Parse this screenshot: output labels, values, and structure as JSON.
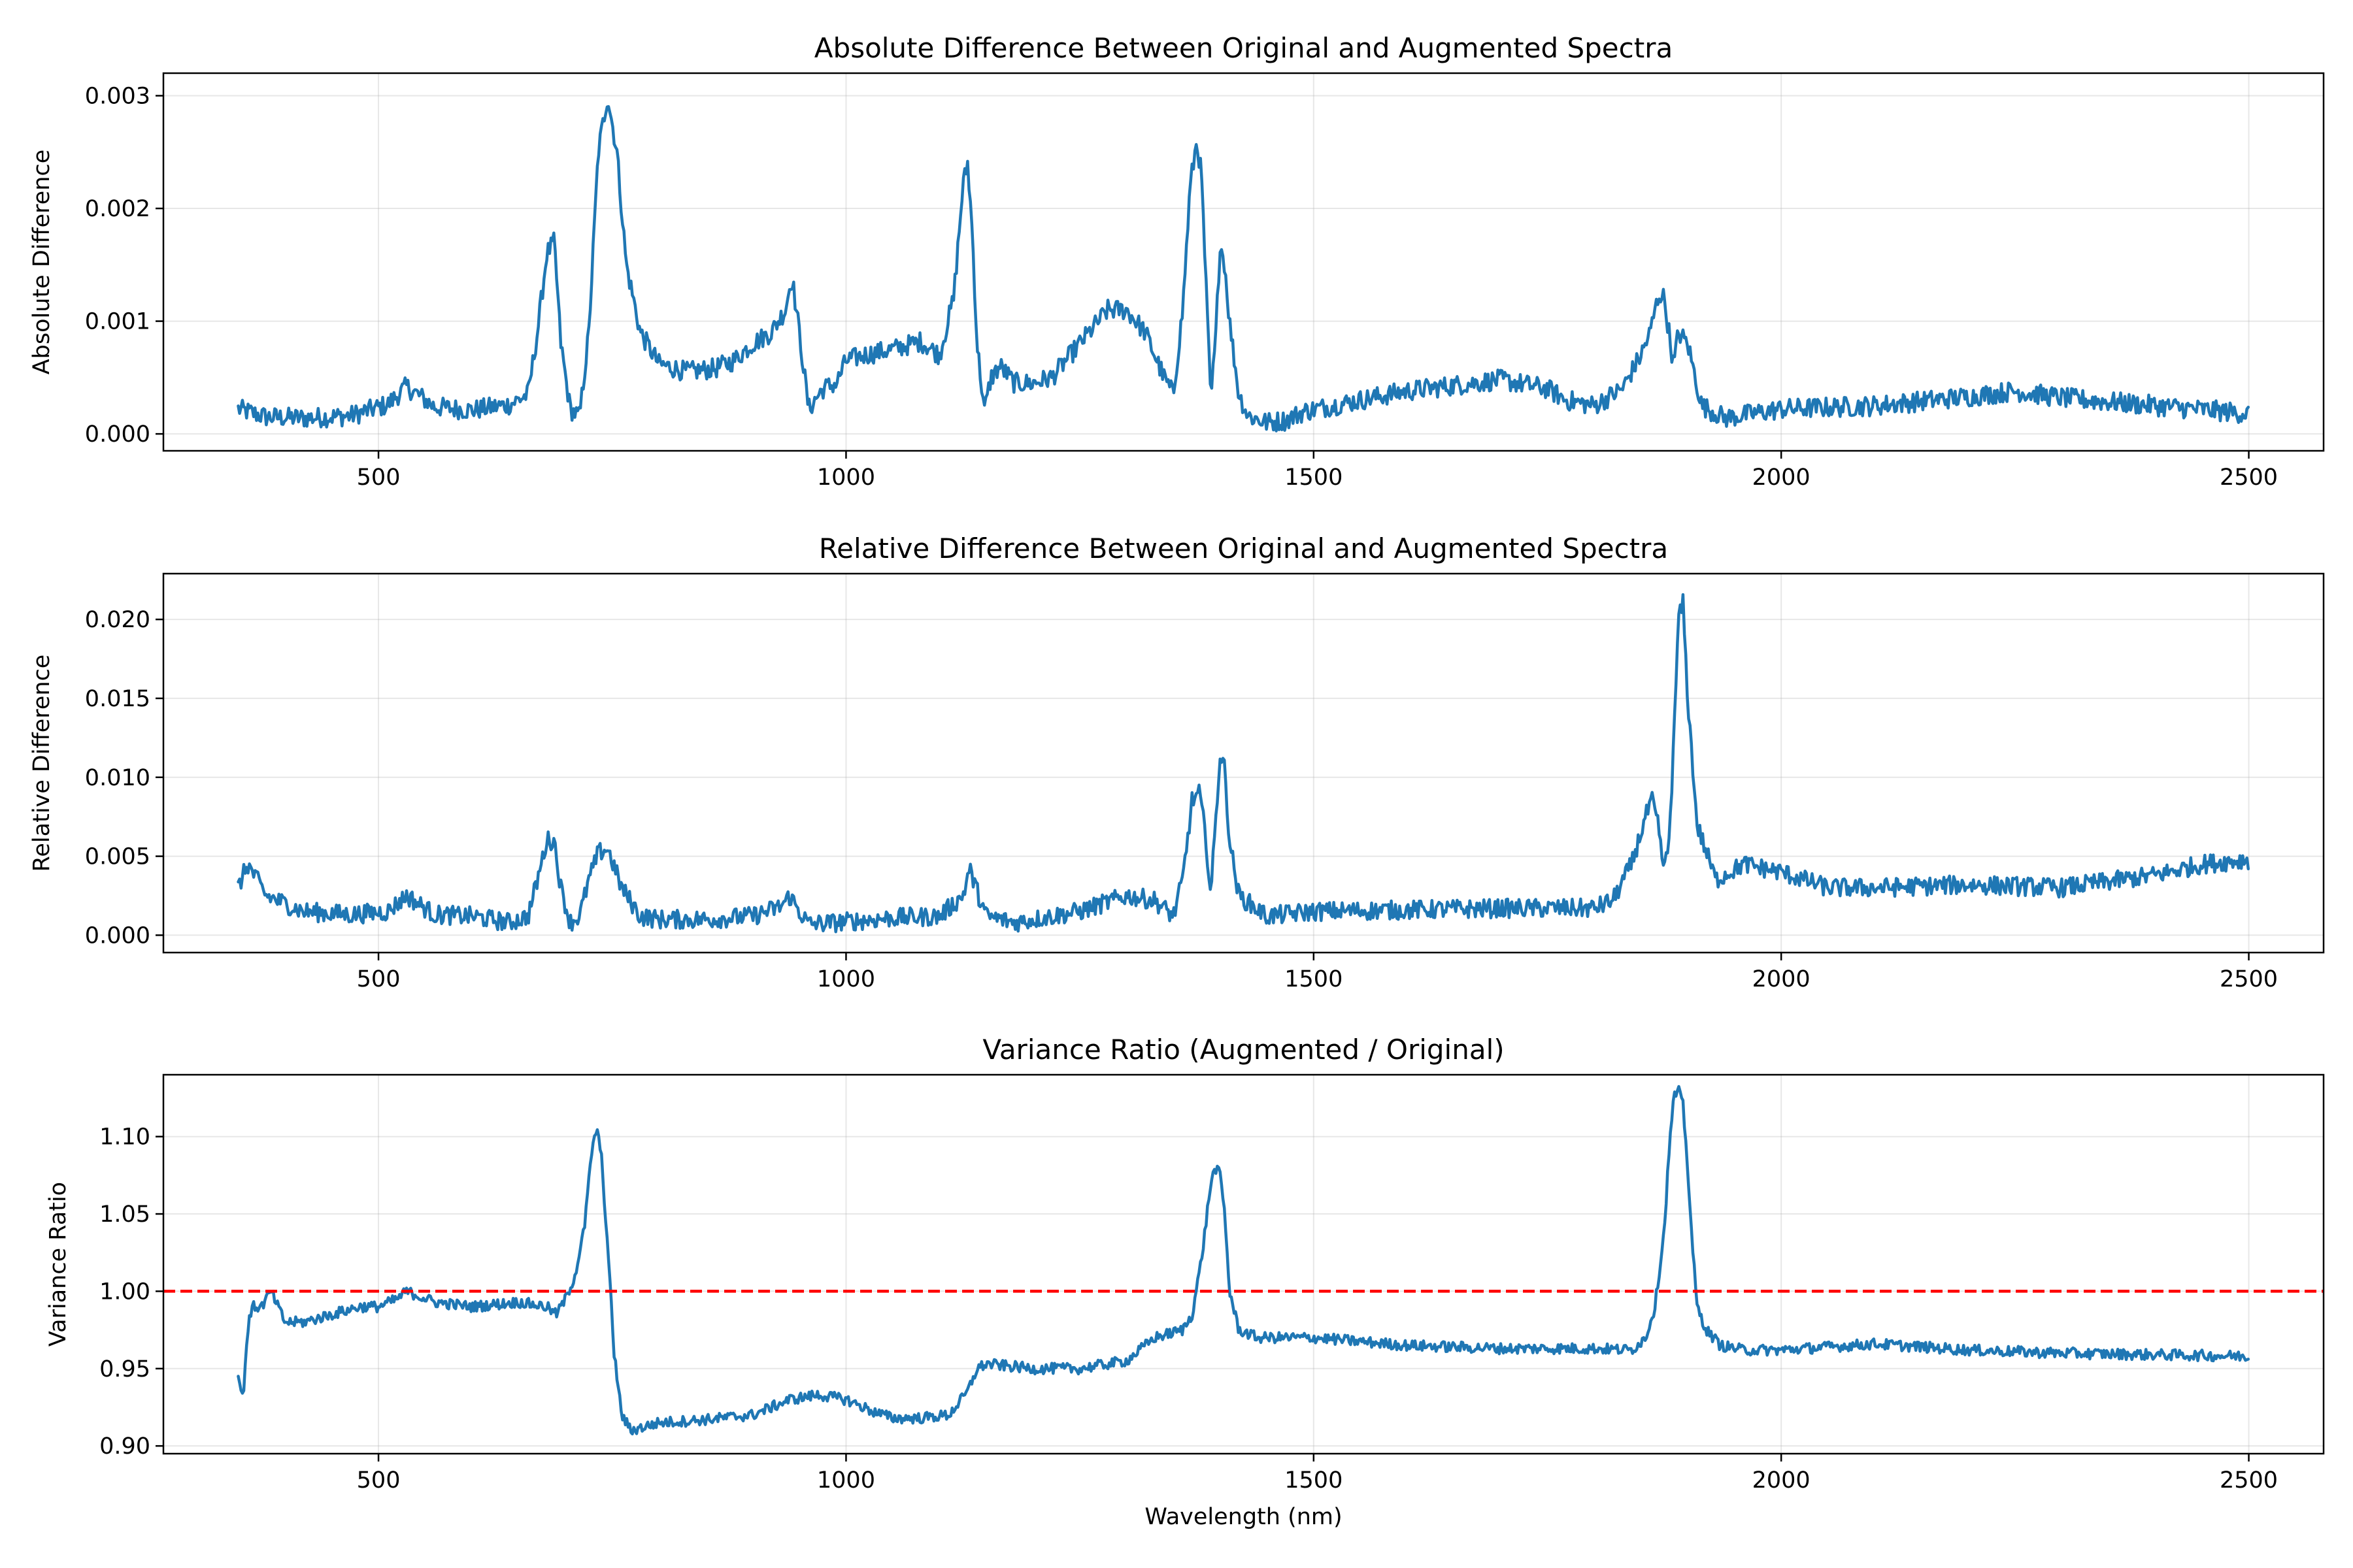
{
  "colors": {
    "series": "#1f77b4",
    "reference": "#ff0000"
  },
  "chart_data": [
    {
      "type": "line",
      "title": "Absolute Difference Between Original and Augmented Spectra",
      "xlabel": "",
      "ylabel": "Absolute Difference",
      "xlim": [
        270,
        2580
      ],
      "ylim": [
        -0.00015,
        0.0032
      ],
      "xticks": [
        500,
        1000,
        1500,
        2000,
        2500
      ],
      "xtick_labels": [
        "500",
        "1000",
        "1500",
        "2000",
        "2500"
      ],
      "yticks": [
        0,
        0.001,
        0.002,
        0.003
      ],
      "ytick_labels": [
        "0.000",
        "0.001",
        "0.002",
        "0.003"
      ],
      "grid": true,
      "noise": 9e-05,
      "series": [
        {
          "x": [
            350,
            380,
            420,
            470,
            510,
            530,
            560,
            600,
            640,
            660,
            670,
            680,
            688,
            695,
            705,
            715,
            725,
            735,
            745,
            755,
            765,
            780,
            800,
            830,
            860,
            880,
            900,
            920,
            935,
            942,
            950,
            960,
            975,
            990,
            1000,
            1020,
            1050,
            1080,
            1100,
            1115,
            1125,
            1130,
            1135,
            1140,
            1148,
            1155,
            1165,
            1180,
            1200,
            1220,
            1250,
            1280,
            1300,
            1320,
            1340,
            1350,
            1360,
            1368,
            1375,
            1380,
            1385,
            1390,
            1395,
            1400,
            1405,
            1410,
            1420,
            1430,
            1450,
            1470,
            1490,
            1550,
            1600,
            1700,
            1750,
            1770,
            1800,
            1830,
            1850,
            1860,
            1865,
            1870,
            1875,
            1880,
            1885,
            1890,
            1900,
            1915,
            1940,
            2000,
            2100,
            2200,
            2250,
            2300,
            2400,
            2500
          ],
          "y": [
            0.00022,
            0.00015,
            0.00014,
            0.00016,
            0.00026,
            0.00042,
            0.00024,
            0.00021,
            0.00026,
            0.00035,
            0.0009,
            0.0016,
            0.0017,
            0.0008,
            0.00022,
            0.00015,
            0.0009,
            0.0025,
            0.003,
            0.0025,
            0.0015,
            0.0009,
            0.00062,
            0.00055,
            0.00058,
            0.00065,
            0.0008,
            0.0009,
            0.0011,
            0.0014,
            0.0009,
            0.00022,
            0.0004,
            0.00045,
            0.00065,
            0.0007,
            0.00075,
            0.00082,
            0.0007,
            0.0012,
            0.0022,
            0.0024,
            0.0018,
            0.0008,
            0.0002,
            0.0005,
            0.0006,
            0.00045,
            0.00045,
            0.0005,
            0.0008,
            0.0011,
            0.0011,
            0.0009,
            0.0005,
            0.00035,
            0.0011,
            0.0022,
            0.0026,
            0.0023,
            0.0013,
            0.0003,
            0.0008,
            0.0017,
            0.0015,
            0.001,
            0.00035,
            0.00016,
            0.0001,
            0.00012,
            0.0002,
            0.0003,
            0.00038,
            0.00048,
            0.0004,
            0.0003,
            0.00025,
            0.0004,
            0.0007,
            0.0009,
            0.0011,
            0.00125,
            0.0012,
            0.0009,
            0.0006,
            0.0009,
            0.0008,
            0.00025,
            0.00014,
            0.00022,
            0.00025,
            0.00033,
            0.00038,
            0.00032,
            0.00025,
            0.00018
          ]
        }
      ]
    },
    {
      "type": "line",
      "title": "Relative Difference Between Original and Augmented Spectra",
      "xlabel": "",
      "ylabel": "Relative Difference",
      "xlim": [
        270,
        2580
      ],
      "ylim": [
        -0.0011,
        0.0229
      ],
      "xticks": [
        500,
        1000,
        1500,
        2000,
        2500
      ],
      "xtick_labels": [
        "500",
        "1000",
        "1500",
        "2000",
        "2500"
      ],
      "yticks": [
        0,
        0.005,
        0.01,
        0.015,
        0.02
      ],
      "ytick_labels": [
        "0.000",
        "0.005",
        "0.010",
        "0.015",
        "0.020"
      ],
      "grid": true,
      "noise": 0.0006,
      "series": [
        {
          "x": [
            350,
            360,
            380,
            420,
            470,
            510,
            530,
            560,
            600,
            640,
            660,
            670,
            680,
            688,
            695,
            705,
            715,
            725,
            735,
            745,
            760,
            780,
            800,
            850,
            900,
            930,
            940,
            950,
            960,
            990,
            1050,
            1100,
            1125,
            1132,
            1140,
            1150,
            1180,
            1250,
            1300,
            1330,
            1350,
            1360,
            1370,
            1378,
            1385,
            1390,
            1395,
            1400,
            1405,
            1410,
            1420,
            1450,
            1500,
            1600,
            1700,
            1800,
            1820,
            1840,
            1855,
            1862,
            1868,
            1875,
            1880,
            1885,
            1890,
            1895,
            1900,
            1910,
            1930,
            1960,
            2000,
            2050,
            2100,
            2200,
            2300,
            2400,
            2450,
            2500
          ],
          "y": [
            0.003,
            0.0045,
            0.0025,
            0.0015,
            0.0013,
            0.0015,
            0.0025,
            0.0013,
            0.0012,
            0.0008,
            0.0012,
            0.0035,
            0.006,
            0.006,
            0.003,
            0.0008,
            0.0012,
            0.0035,
            0.0052,
            0.0055,
            0.003,
            0.0012,
            0.001,
            0.001,
            0.0012,
            0.0018,
            0.0025,
            0.0015,
            0.0007,
            0.0008,
            0.0011,
            0.0012,
            0.0025,
            0.0042,
            0.0028,
            0.0012,
            0.0008,
            0.0015,
            0.0025,
            0.0022,
            0.0012,
            0.0035,
            0.0085,
            0.009,
            0.006,
            0.0025,
            0.007,
            0.0115,
            0.0105,
            0.006,
            0.0025,
            0.0012,
            0.0015,
            0.0016,
            0.0017,
            0.0017,
            0.0022,
            0.0045,
            0.0075,
            0.0085,
            0.007,
            0.004,
            0.006,
            0.012,
            0.02,
            0.021,
            0.015,
            0.007,
            0.0035,
            0.0045,
            0.004,
            0.003,
            0.003,
            0.0032,
            0.003,
            0.0038,
            0.0045,
            0.0048
          ]
        }
      ]
    },
    {
      "type": "line",
      "title": "Variance Ratio (Augmented / Original)",
      "xlabel": "Wavelength (nm)",
      "ylabel": "Variance Ratio",
      "xlim": [
        270,
        2580
      ],
      "ylim": [
        0.895,
        1.14
      ],
      "xticks": [
        500,
        1000,
        1500,
        2000,
        2500
      ],
      "xtick_labels": [
        "500",
        "1000",
        "1500",
        "2000",
        "2500"
      ],
      "yticks": [
        0.9,
        0.95,
        1.0,
        1.05,
        1.1
      ],
      "ytick_labels": [
        "0.90",
        "0.95",
        "1.00",
        "1.05",
        "1.10"
      ],
      "grid": true,
      "noise": 0.0035,
      "reference_line": {
        "y": 1.0,
        "style": "dashed"
      },
      "series": [
        {
          "x": [
            350,
            355,
            360,
            365,
            375,
            385,
            400,
            420,
            450,
            480,
            500,
            520,
            530,
            560,
            600,
            650,
            680,
            690,
            700,
            710,
            720,
            728,
            733,
            738,
            745,
            752,
            760,
            770,
            800,
            850,
            900,
            940,
            970,
            1000,
            1030,
            1050,
            1080,
            1110,
            1130,
            1140,
            1150,
            1200,
            1250,
            1300,
            1330,
            1360,
            1370,
            1380,
            1390,
            1395,
            1400,
            1405,
            1410,
            1420,
            1440,
            1500,
            1600,
            1700,
            1800,
            1840,
            1855,
            1865,
            1875,
            1880,
            1885,
            1890,
            1895,
            1900,
            1905,
            1910,
            1920,
            1935,
            1960,
            2000,
            2100,
            2200,
            2300,
            2400,
            2500
          ],
          "y": [
            0.945,
            0.93,
            0.975,
            0.99,
            0.99,
            1.0,
            0.98,
            0.98,
            0.985,
            0.99,
            0.99,
            0.995,
            1.0,
            0.993,
            0.99,
            0.993,
            0.99,
            0.985,
            0.995,
            1.01,
            1.04,
            1.09,
            1.105,
            1.09,
            1.03,
            0.96,
            0.92,
            0.91,
            0.915,
            0.917,
            0.92,
            0.93,
            0.933,
            0.93,
            0.922,
            0.918,
            0.918,
            0.92,
            0.935,
            0.95,
            0.953,
            0.95,
            0.95,
            0.955,
            0.97,
            0.975,
            0.985,
            1.02,
            1.07,
            1.08,
            1.075,
            1.05,
            1.0,
            0.975,
            0.97,
            0.97,
            0.965,
            0.963,
            0.963,
            0.962,
            0.97,
            0.99,
            1.04,
            1.09,
            1.125,
            1.13,
            1.12,
            1.08,
            1.03,
            0.99,
            0.975,
            0.965,
            0.962,
            0.962,
            0.966,
            0.962,
            0.96,
            0.959,
            0.958
          ]
        }
      ]
    }
  ]
}
